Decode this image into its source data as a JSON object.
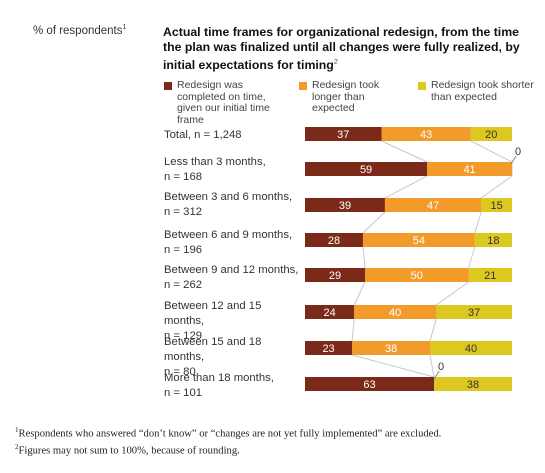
{
  "unit_label": "% of respondents",
  "unit_sup": "1",
  "colors": {
    "on_time": "#7b2a1a",
    "longer": "#f29a2a",
    "shorter": "#dcc81f",
    "connector": "#c8c8c8"
  },
  "chart_data": {
    "type": "bar",
    "stacked": true,
    "orientation": "horizontal",
    "title": "Actual time frames for organizational redesign, from the time the plan was finalized until all changes were fully realized, by initial expectations for timing",
    "title_sup": "2",
    "legend_position": "top",
    "categories": [
      [
        "Total, n = 1,248"
      ],
      [
        "Less than 3 months,",
        "n = 168"
      ],
      [
        "Between 3 and 6 months,",
        "n = 312"
      ],
      [
        "Between 6 and 9 months,",
        "n = 196"
      ],
      [
        "Between 9 and 12 months,",
        "n = 262"
      ],
      [
        "Between 12 and 15 months,",
        "n = 129"
      ],
      [
        "Between 15 and 18 months,",
        "n = 80"
      ],
      [
        "More than 18 months,",
        "n = 101"
      ]
    ],
    "series": [
      {
        "name": "Redesign was completed on time, given our initial time frame",
        "values": [
          37,
          59,
          39,
          28,
          29,
          24,
          23,
          63
        ]
      },
      {
        "name": "Redesign took longer than expected",
        "values": [
          43,
          41,
          47,
          54,
          50,
          40,
          38,
          0
        ]
      },
      {
        "name": "Redesign took shorter than expected",
        "values": [
          20,
          0,
          15,
          18,
          21,
          37,
          40,
          38
        ]
      }
    ],
    "zero_callout": "0"
  },
  "footnotes": [
    {
      "sup": "1",
      "text": "Respondents who answered “don’t know” or “changes are not yet fully implemented” are excluded."
    },
    {
      "sup": "2",
      "text": "Figures may not sum to 100%, because of rounding."
    }
  ]
}
